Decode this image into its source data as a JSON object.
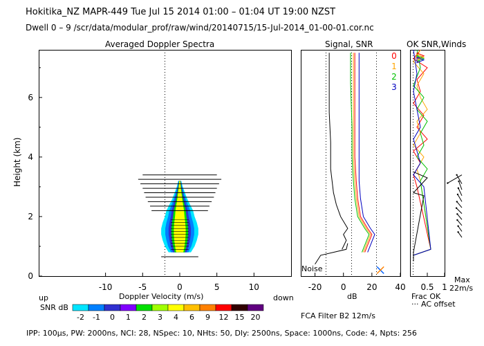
{
  "header": {
    "line1": "Hokitika_NZ  MAPR-449  Tue Jul 15 2014 01:00 – 01:04 UT 19:00 NZST",
    "line2": "Dwell  0 – 9   /scr/data/modular_prof/raw/wind/20140715/15-Jul-2014_01-00-01.cor.nc"
  },
  "panels": {
    "spectra_title": "Averaged Doppler Spectra",
    "signal_title": "Signal, SNR",
    "ok_title": "OK SNR,Winds",
    "noise_label": "Noise"
  },
  "axes": {
    "ylabel": "Height (km)",
    "xlabel": "Doppler Velocity (m/s)",
    "up": "up",
    "down": "down",
    "db_label": "dB",
    "frac_ok": "Frac OK",
    "ac_offset": "··· AC offset",
    "max_label": "Max",
    "max_value": "22m/s",
    "fca_filter": "FCA Filter B2 12m/s",
    "snr_db": "SNR dB"
  },
  "footer": {
    "params": "IPP: 100μs,  PW: 2000ns,  NCI:  28,  NSpec: 10,  NHts: 50,  Dly: 2500ns,  Space: 1000ns,  Code: 4,  Npts: 256"
  },
  "colorbar": {
    "labels": [
      "-2",
      "-1",
      "0",
      "1",
      "2",
      "3",
      "4",
      "6",
      "9",
      "12",
      "15",
      "20"
    ],
    "colors": [
      "#00e5ff",
      "#0080ff",
      "#3030d0",
      "#8000ff",
      "#00e000",
      "#a0ff00",
      "#ffff00",
      "#ffc000",
      "#ff8000",
      "#ff0000",
      "#300000",
      "#600080"
    ]
  },
  "series_legend": [
    {
      "label": "0",
      "color": "#ff0000"
    },
    {
      "label": "1",
      "color": "#ffa500"
    },
    {
      "label": "2",
      "color": "#00c000"
    },
    {
      "label": "3",
      "color": "#0000c0"
    }
  ],
  "chart_data": [
    {
      "type": "heatmap",
      "title": "Averaged Doppler Spectra",
      "xlabel": "Doppler Velocity (m/s)",
      "ylabel": "Height (km)",
      "xlim": [
        -19,
        15
      ],
      "ylim": [
        0,
        7.6
      ],
      "xticks": [
        -10,
        -5,
        0,
        5,
        10
      ],
      "yticks": [
        0,
        2,
        4,
        6
      ],
      "spectra_width": {
        "heights": [
          0.8,
          1.0,
          1.2,
          1.4,
          1.6,
          1.8,
          2.0,
          2.2,
          2.4,
          2.6,
          2.8,
          3.0,
          3.2
        ],
        "half_width_ms": [
          1.5,
          2.0,
          2.3,
          2.5,
          2.5,
          2.3,
          2.0,
          1.8,
          1.4,
          1.0,
          0.7,
          0.4,
          0.2
        ]
      },
      "noise_bar_heights": [
        0.65,
        2.2,
        2.35,
        2.5,
        2.65,
        2.8,
        2.95,
        3.1,
        3.25,
        3.4
      ],
      "noise_bar_half_width_ms": [
        2.5,
        3.8,
        4.0,
        4.3,
        4.6,
        4.8,
        5.0,
        5.3,
        5.6,
        5.0
      ]
    },
    {
      "type": "line",
      "title": "Signal, SNR",
      "xlabel": "dB",
      "xlim": [
        -30,
        40
      ],
      "xticks": [
        -20,
        0,
        20,
        40
      ],
      "ylim": [
        0,
        7.6
      ],
      "series": [
        {
          "name": "Noise",
          "x": [
            -20,
            -16,
            2,
            3
          ],
          "y": [
            0.4,
            0.7,
            0.9,
            1.1
          ]
        },
        {
          "x": [
            -1,
            2,
            0,
            3,
            -2,
            -5,
            -7,
            -8,
            -9,
            -9,
            -10,
            -10,
            -10
          ],
          "y": [
            0.9,
            1.2,
            1.4,
            1.6,
            2.0,
            2.4,
            2.8,
            3.2,
            3.6,
            4.5,
            5.5,
            6.5,
            7.5
          ]
        },
        {
          "x": [
            13,
            18,
            15,
            10,
            8,
            7,
            6,
            6,
            5,
            5
          ],
          "y": [
            0.8,
            1.4,
            1.6,
            2.0,
            2.6,
            3.2,
            4.0,
            5.0,
            6.5,
            7.5
          ]
        },
        {
          "x": [
            15,
            20,
            17,
            12,
            10,
            9,
            8,
            8,
            8,
            8
          ],
          "y": [
            0.8,
            1.4,
            1.6,
            2.0,
            2.6,
            3.2,
            4.0,
            5.0,
            6.5,
            7.5
          ]
        },
        {
          "x": [
            14,
            19,
            16,
            11,
            9,
            8,
            7,
            7,
            7,
            7
          ],
          "y": [
            0.8,
            1.4,
            1.6,
            2.0,
            2.6,
            3.2,
            4.0,
            5.0,
            6.5,
            7.5
          ]
        },
        {
          "x": [
            17,
            22,
            19,
            14,
            12,
            11,
            11,
            11,
            11,
            11
          ],
          "y": [
            0.8,
            1.4,
            1.6,
            2.0,
            2.6,
            3.2,
            4.0,
            5.0,
            6.5,
            7.5
          ]
        }
      ]
    },
    {
      "type": "line",
      "title": "OK SNR,Winds",
      "xlabel": "Frac OK",
      "xlim": [
        0,
        1
      ],
      "xticks": [
        0.5,
        1
      ],
      "ylim": [
        0,
        7.6
      ],
      "series": [
        {
          "name": "0",
          "color": "#ff0000",
          "x": [
            0.1,
            0.1,
            0.6,
            0.2,
            0.1,
            0.3,
            0.1,
            0.5,
            0.2,
            0.4,
            0.1,
            0.3,
            0.2,
            0.5,
            0.1,
            0.3
          ],
          "y": [
            0.5,
            0.7,
            0.9,
            3.0,
            3.4,
            3.8,
            4.2,
            4.6,
            5.0,
            5.4,
            5.8,
            6.2,
            6.6,
            7.0,
            7.3,
            7.6
          ]
        },
        {
          "name": "1",
          "color": "#ffa500",
          "x": [
            0.1,
            0.1,
            0.6,
            0.3,
            0.2,
            0.4,
            0.1,
            0.3,
            0.2,
            0.5,
            0.3,
            0.2,
            0.4,
            0.1,
            0.3
          ],
          "y": [
            0.5,
            0.7,
            0.9,
            3.2,
            3.6,
            4.0,
            4.4,
            4.8,
            5.2,
            5.6,
            6.0,
            6.4,
            6.8,
            7.2,
            7.6
          ]
        },
        {
          "name": "2",
          "color": "#00c000",
          "x": [
            0.1,
            0.1,
            0.6,
            0.3,
            0.5,
            0.2,
            0.4,
            0.3,
            0.5,
            0.2,
            0.4,
            0.1,
            0.3,
            0.2
          ],
          "y": [
            0.5,
            0.7,
            0.9,
            3.2,
            3.6,
            4.0,
            4.4,
            4.8,
            5.2,
            5.6,
            6.0,
            6.4,
            7.0,
            7.6
          ]
        },
        {
          "name": "3",
          "color": "#0000c0",
          "x": [
            0.1,
            0.1,
            0.6,
            0.4,
            0.1,
            0.3,
            0.2,
            0.1,
            0.3,
            0.2,
            0.1,
            0.2,
            0.1
          ],
          "y": [
            0.5,
            0.7,
            0.9,
            3.0,
            3.4,
            3.8,
            4.2,
            4.6,
            5.0,
            5.6,
            6.2,
            6.8,
            7.6
          ]
        },
        {
          "name": "AC offset",
          "color": "#000000",
          "x": [
            0.1,
            0.1,
            0.4,
            0.1,
            0.5,
            0.1
          ],
          "y": [
            0.5,
            0.8,
            2.7,
            2.8,
            3.3,
            3.5
          ]
        }
      ],
      "wind_barb_heights": [
        1.3,
        1.5,
        1.7,
        1.9,
        2.1,
        2.3,
        2.5,
        2.7,
        2.9,
        3.1,
        3.4
      ],
      "wind_direction_deg": [
        35,
        35,
        40,
        40,
        45,
        40,
        30,
        25,
        20,
        30,
        120
      ],
      "wind_speed_ms": [
        6,
        6,
        7,
        7,
        8,
        8,
        9,
        9,
        10,
        12,
        22
      ]
    }
  ]
}
